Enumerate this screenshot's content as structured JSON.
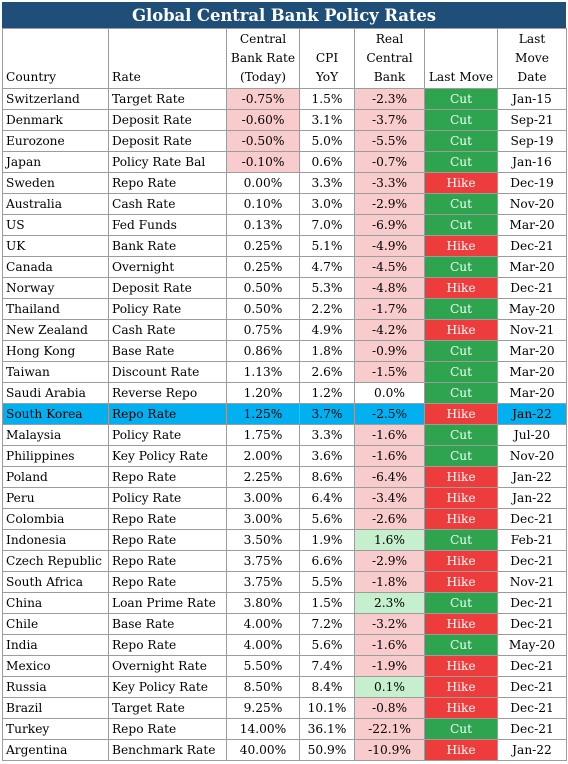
{
  "title": "Global Central Bank Policy Rates",
  "headers": {
    "country": "Country",
    "rate": "Rate",
    "central_bank_rate": "Central Bank Rate (Today)",
    "cpi": "CPI YoY",
    "real_rate": "Real Central Bank",
    "last_move": "Last Move",
    "last_move_date": "Last Move Date"
  },
  "colors": {
    "title_bg": "#1f4e79",
    "negative_fill": "#f8cbcd",
    "positive_fill": "#c6efce",
    "cut": "#2ea44f",
    "hike": "#ee3b3b",
    "highlight_row": "#00b0f0"
  },
  "highlighted_country": "South Korea",
  "rows": [
    {
      "country": "Switzerland",
      "rate": "Target Rate",
      "cb": "-0.75%",
      "cpi": "1.5%",
      "real": "-2.3%",
      "move": "Cut",
      "date": "Jan-15"
    },
    {
      "country": "Denmark",
      "rate": "Deposit Rate",
      "cb": "-0.60%",
      "cpi": "3.1%",
      "real": "-3.7%",
      "move": "Cut",
      "date": "Sep-21"
    },
    {
      "country": "Eurozone",
      "rate": "Deposit Rate",
      "cb": "-0.50%",
      "cpi": "5.0%",
      "real": "-5.5%",
      "move": "Cut",
      "date": "Sep-19"
    },
    {
      "country": "Japan",
      "rate": "Policy Rate Bal",
      "cb": "-0.10%",
      "cpi": "0.6%",
      "real": "-0.7%",
      "move": "Cut",
      "date": "Jan-16"
    },
    {
      "country": "Sweden",
      "rate": "Repo Rate",
      "cb": "0.00%",
      "cpi": "3.3%",
      "real": "-3.3%",
      "move": "Hike",
      "date": "Dec-19"
    },
    {
      "country": "Australia",
      "rate": "Cash Rate",
      "cb": "0.10%",
      "cpi": "3.0%",
      "real": "-2.9%",
      "move": "Cut",
      "date": "Nov-20"
    },
    {
      "country": "US",
      "rate": "Fed Funds",
      "cb": "0.13%",
      "cpi": "7.0%",
      "real": "-6.9%",
      "move": "Cut",
      "date": "Mar-20"
    },
    {
      "country": "UK",
      "rate": "Bank Rate",
      "cb": "0.25%",
      "cpi": "5.1%",
      "real": "-4.9%",
      "move": "Hike",
      "date": "Dec-21"
    },
    {
      "country": "Canada",
      "rate": "Overnight",
      "cb": "0.25%",
      "cpi": "4.7%",
      "real": "-4.5%",
      "move": "Cut",
      "date": "Mar-20"
    },
    {
      "country": "Norway",
      "rate": "Deposit Rate",
      "cb": "0.50%",
      "cpi": "5.3%",
      "real": "-4.8%",
      "move": "Hike",
      "date": "Dec-21"
    },
    {
      "country": "Thailand",
      "rate": "Policy Rate",
      "cb": "0.50%",
      "cpi": "2.2%",
      "real": "-1.7%",
      "move": "Cut",
      "date": "May-20"
    },
    {
      "country": "New Zealand",
      "rate": "Cash Rate",
      "cb": "0.75%",
      "cpi": "4.9%",
      "real": "-4.2%",
      "move": "Hike",
      "date": "Nov-21"
    },
    {
      "country": "Hong Kong",
      "rate": "Base Rate",
      "cb": "0.86%",
      "cpi": "1.8%",
      "real": "-0.9%",
      "move": "Cut",
      "date": "Mar-20"
    },
    {
      "country": "Taiwan",
      "rate": "Discount Rate",
      "cb": "1.13%",
      "cpi": "2.6%",
      "real": "-1.5%",
      "move": "Cut",
      "date": "Mar-20"
    },
    {
      "country": "Saudi Arabia",
      "rate": "Reverse Repo",
      "cb": "1.20%",
      "cpi": "1.2%",
      "real": "0.0%",
      "move": "Cut",
      "date": "Mar-20"
    },
    {
      "country": "South Korea",
      "rate": "Repo Rate",
      "cb": "1.25%",
      "cpi": "3.7%",
      "real": "-2.5%",
      "move": "Hike",
      "date": "Jan-22"
    },
    {
      "country": "Malaysia",
      "rate": "Policy Rate",
      "cb": "1.75%",
      "cpi": "3.3%",
      "real": "-1.6%",
      "move": "Cut",
      "date": "Jul-20"
    },
    {
      "country": "Philippines",
      "rate": "Key Policy Rate",
      "cb": "2.00%",
      "cpi": "3.6%",
      "real": "-1.6%",
      "move": "Cut",
      "date": "Nov-20"
    },
    {
      "country": "Poland",
      "rate": "Repo Rate",
      "cb": "2.25%",
      "cpi": "8.6%",
      "real": "-6.4%",
      "move": "Hike",
      "date": "Jan-22"
    },
    {
      "country": "Peru",
      "rate": "Policy Rate",
      "cb": "3.00%",
      "cpi": "6.4%",
      "real": "-3.4%",
      "move": "Hike",
      "date": "Jan-22"
    },
    {
      "country": "Colombia",
      "rate": "Repo Rate",
      "cb": "3.00%",
      "cpi": "5.6%",
      "real": "-2.6%",
      "move": "Hike",
      "date": "Dec-21"
    },
    {
      "country": "Indonesia",
      "rate": "Repo Rate",
      "cb": "3.50%",
      "cpi": "1.9%",
      "real": "1.6%",
      "move": "Cut",
      "date": "Feb-21"
    },
    {
      "country": "Czech Republic",
      "rate": "Repo Rate",
      "cb": "3.75%",
      "cpi": "6.6%",
      "real": "-2.9%",
      "move": "Hike",
      "date": "Dec-21"
    },
    {
      "country": "South Africa",
      "rate": "Repo Rate",
      "cb": "3.75%",
      "cpi": "5.5%",
      "real": "-1.8%",
      "move": "Hike",
      "date": "Nov-21"
    },
    {
      "country": "China",
      "rate": "Loan Prime Rate",
      "cb": "3.80%",
      "cpi": "1.5%",
      "real": "2.3%",
      "move": "Cut",
      "date": "Dec-21"
    },
    {
      "country": "Chile",
      "rate": "Base Rate",
      "cb": "4.00%",
      "cpi": "7.2%",
      "real": "-3.2%",
      "move": "Hike",
      "date": "Dec-21"
    },
    {
      "country": "India",
      "rate": "Repo Rate",
      "cb": "4.00%",
      "cpi": "5.6%",
      "real": "-1.6%",
      "move": "Cut",
      "date": "May-20"
    },
    {
      "country": "Mexico",
      "rate": "Overnight Rate",
      "cb": "5.50%",
      "cpi": "7.4%",
      "real": "-1.9%",
      "move": "Hike",
      "date": "Dec-21"
    },
    {
      "country": "Russia",
      "rate": "Key Policy Rate",
      "cb": "8.50%",
      "cpi": "8.4%",
      "real": "0.1%",
      "move": "Hike",
      "date": "Dec-21"
    },
    {
      "country": "Brazil",
      "rate": "Target Rate",
      "cb": "9.25%",
      "cpi": "10.1%",
      "real": "-0.8%",
      "move": "Hike",
      "date": "Dec-21"
    },
    {
      "country": "Turkey",
      "rate": "Repo Rate",
      "cb": "14.00%",
      "cpi": "36.1%",
      "real": "-22.1%",
      "move": "Cut",
      "date": "Dec-21"
    },
    {
      "country": "Argentina",
      "rate": "Benchmark Rate",
      "cb": "40.00%",
      "cpi": "50.9%",
      "real": "-10.9%",
      "move": "Hike",
      "date": "Jan-22"
    }
  ]
}
